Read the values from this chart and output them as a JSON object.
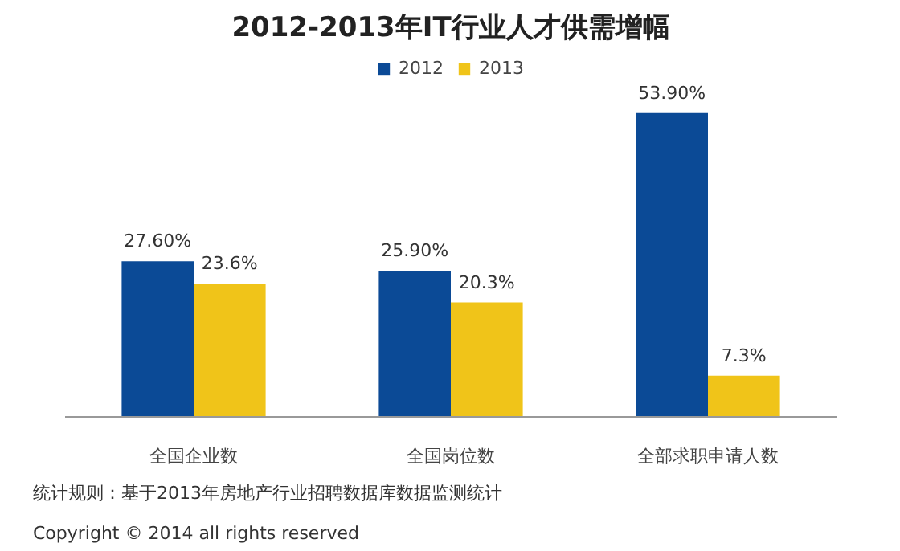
{
  "chart_data": {
    "type": "bar",
    "title": "2012-2013年IT行业人才供需增幅",
    "categories": [
      "全国企业数",
      "全国岗位数",
      "全部求职申请人数"
    ],
    "series": [
      {
        "name": "2012",
        "color": "#0b4a96",
        "values": [
          27.6,
          25.9,
          53.9
        ],
        "value_labels": [
          "27.60%",
          "25.90%",
          "53.90%"
        ]
      },
      {
        "name": "2013",
        "color": "#f0c419",
        "values": [
          23.6,
          20.3,
          7.3
        ],
        "value_labels": [
          "23.6%",
          "20.3%",
          "7.3%"
        ]
      }
    ],
    "legend": "top",
    "annotations": [
      "统计规则：基于2013年房地产行业招聘数据库数据监测统计",
      "Copyright  ©  2014 all rights reserved"
    ]
  }
}
